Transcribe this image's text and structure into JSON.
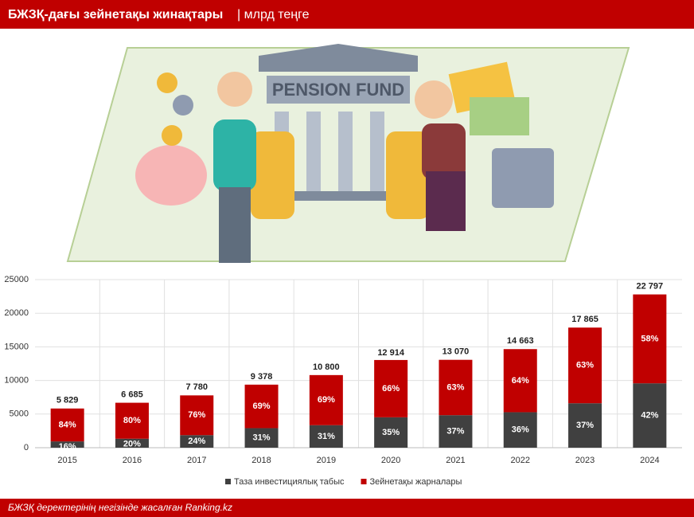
{
  "header": {
    "title": "БЖЗҚ-дағы зейнетақы жинақтары",
    "unit": "| млрд теңге"
  },
  "illustration_text": "PENSION FUND",
  "chart_data": {
    "type": "bar",
    "stacked": true,
    "categories": [
      "2015",
      "2016",
      "2017",
      "2018",
      "2019",
      "2020",
      "2021",
      "2022",
      "2023",
      "2024"
    ],
    "series": [
      {
        "name": "Таза инвестициялық табыс",
        "color": "#404040",
        "values": [
          16,
          20,
          24,
          31,
          31,
          35,
          37,
          36,
          37,
          42
        ],
        "value_labels": [
          "16%",
          "20%",
          "24%",
          "31%",
          "31%",
          "35%",
          "37%",
          "36%",
          "37%",
          "42%"
        ]
      },
      {
        "name": "Зейнетақы жарналары",
        "color": "#c00000",
        "values": [
          84,
          80,
          76,
          69,
          69,
          66,
          63,
          64,
          63,
          58
        ],
        "value_labels": [
          "84%",
          "80%",
          "76%",
          "69%",
          "69%",
          "66%",
          "63%",
          "64%",
          "63%",
          "58%"
        ]
      }
    ],
    "totals": {
      "values": [
        5829,
        6685,
        7780,
        9378,
        10800,
        12914,
        13070,
        14663,
        17865,
        22797
      ],
      "value_labels": [
        "5 829",
        "6 685",
        "7 780",
        "9 378",
        "10 800",
        "12 914",
        "13 070",
        "14 663",
        "17 865",
        "22 797"
      ]
    },
    "ylim": [
      0,
      25000
    ],
    "yticks": [
      0,
      5000,
      10000,
      15000,
      20000,
      25000
    ],
    "grid": true,
    "legend": "bottom"
  },
  "footer": "БЖЗҚ деректерінің негізінде жасалған Ranking.kz"
}
